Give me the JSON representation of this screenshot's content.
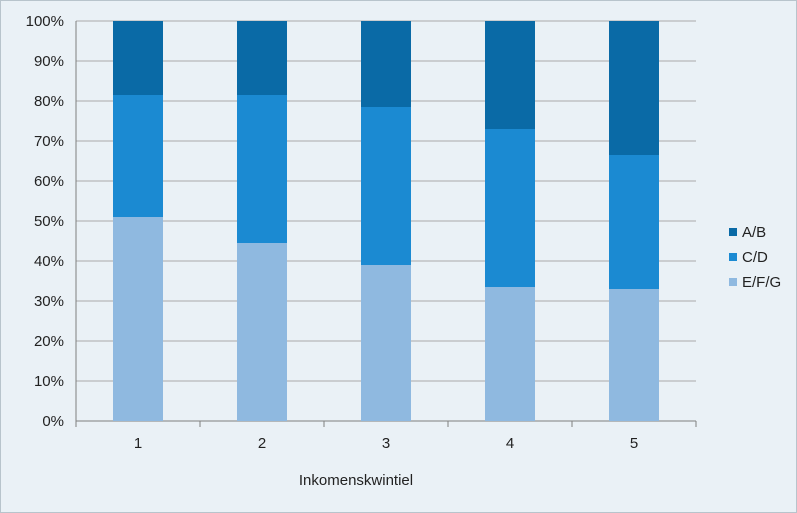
{
  "chart_data": {
    "type": "bar",
    "stacked": true,
    "percent_stacked": true,
    "title": "",
    "xlabel": "Inkomenskwintiel",
    "ylabel": "",
    "categories": [
      "1",
      "2",
      "3",
      "4",
      "5"
    ],
    "y_ticks": [
      "0%",
      "10%",
      "20%",
      "30%",
      "40%",
      "50%",
      "60%",
      "70%",
      "80%",
      "90%",
      "100%"
    ],
    "ylim": [
      0,
      100
    ],
    "grid": true,
    "legend_position": "right",
    "series": [
      {
        "name": "E/F/G",
        "values": [
          51,
          44.5,
          39,
          33.5,
          33
        ],
        "color": "#8fb9e0"
      },
      {
        "name": "C/D",
        "values": [
          30.5,
          37,
          39.5,
          39.5,
          33.5
        ],
        "color": "#1b8ad2"
      },
      {
        "name": "A/B",
        "values": [
          18.5,
          18.5,
          21.5,
          27,
          33.5
        ],
        "color": "#0a6aa6"
      }
    ],
    "legend_order": [
      "A/B",
      "C/D",
      "E/F/G"
    ]
  }
}
